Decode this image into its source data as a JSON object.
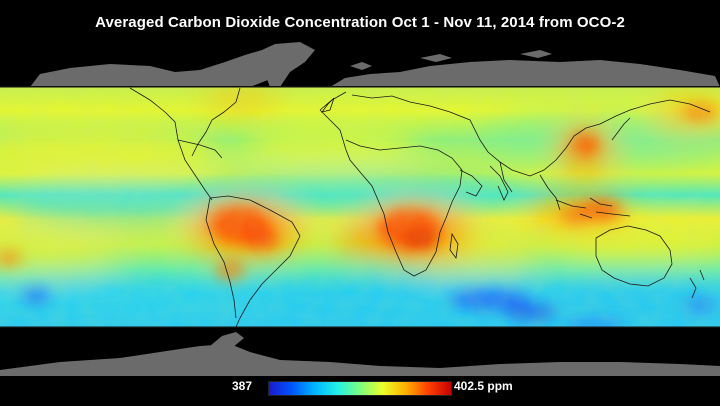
{
  "title": "Averaged Carbon Dioxide Concentration  Oct 1 - Nov 11, 2014  from OCO-2",
  "colorbar": {
    "min_label": "387",
    "max_label": "402.5 ppm",
    "min_value": 387,
    "max_value": 402.5,
    "unit": "ppm",
    "colors": [
      "#1a1acc",
      "#0055ff",
      "#00b4ff",
      "#22f0e8",
      "#7cff80",
      "#eaff2a",
      "#ffb000",
      "#ff4000",
      "#c80000"
    ]
  },
  "colors": {
    "background": "#000000",
    "land_outside_data": "#6b6b6b",
    "coastline": "#1a1a1a"
  },
  "hotspots": [
    {
      "region": "Southern Africa",
      "level": "high"
    },
    {
      "region": "South America (Amazon)",
      "level": "high"
    },
    {
      "region": "Eastern China",
      "level": "high"
    },
    {
      "region": "Indonesia",
      "level": "high"
    },
    {
      "region": "Southern Ocean",
      "level": "low"
    },
    {
      "region": "North Pacific",
      "level": "moderate"
    }
  ]
}
